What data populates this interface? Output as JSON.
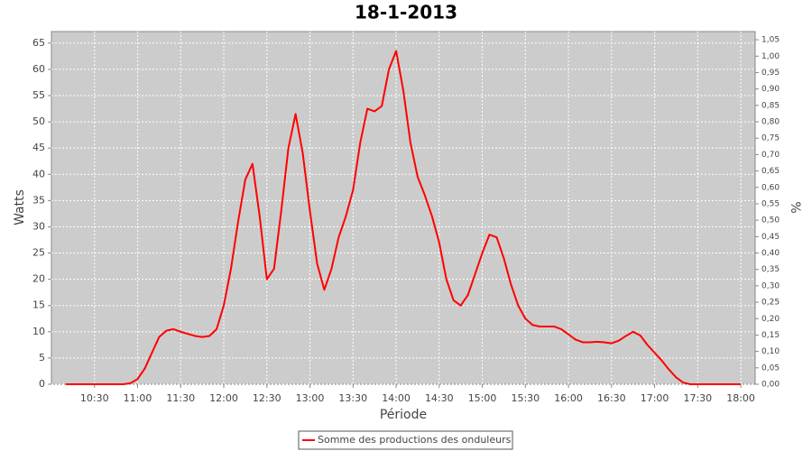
{
  "chart_data": {
    "type": "line",
    "title": "18-1-2013",
    "x_label": "Période",
    "y_label": "Watts",
    "y2_label": "%",
    "x": [
      610,
      615,
      620,
      625,
      630,
      635,
      640,
      645,
      650,
      655,
      660,
      665,
      670,
      675,
      680,
      685,
      690,
      695,
      700,
      705,
      710,
      715,
      720,
      725,
      730,
      735,
      740,
      745,
      750,
      755,
      760,
      765,
      770,
      775,
      780,
      785,
      790,
      795,
      800,
      805,
      810,
      815,
      820,
      825,
      830,
      835,
      840,
      845,
      850,
      855,
      860,
      865,
      870,
      875,
      880,
      885,
      890,
      895,
      900,
      905,
      910,
      915,
      920,
      925,
      930,
      935,
      940,
      945,
      950,
      955,
      960,
      965,
      970,
      975,
      980,
      985,
      990,
      995,
      1000,
      1005,
      1010,
      1015,
      1020,
      1025,
      1030,
      1035,
      1040,
      1045,
      1050,
      1055,
      1060,
      1065,
      1070,
      1075,
      1080
    ],
    "series": [
      {
        "name": "Somme des productions des onduleurs",
        "color": "#ff0000",
        "values": [
          0,
          0,
          0,
          0,
          0,
          0,
          0,
          0,
          0,
          0.2,
          1,
          3,
          6,
          9,
          10.2,
          10.5,
          10,
          9.6,
          9.2,
          9,
          9.2,
          10.5,
          15,
          22,
          31,
          39,
          42,
          32,
          20,
          22,
          33,
          45,
          51.5,
          44,
          33,
          23,
          18,
          22,
          28,
          32,
          37,
          46,
          52.5,
          52,
          53,
          60,
          63.5,
          56,
          46,
          39.5,
          36,
          32,
          27,
          20,
          16,
          15,
          17,
          21,
          25,
          28.5,
          28,
          24,
          19,
          15,
          12.5,
          11.3,
          11,
          11,
          11,
          10.5,
          9.5,
          8.5,
          8,
          8,
          8.1,
          8,
          7.8,
          8.3,
          9.2,
          10,
          9.3,
          7.5,
          6,
          4.5,
          2.8,
          1.3,
          0.3,
          0,
          0,
          0,
          0,
          0,
          0,
          0,
          0
        ]
      }
    ],
    "xlim": [
      600,
      1090
    ],
    "xticks": [
      {
        "value": 630,
        "label": "10:30"
      },
      {
        "value": 660,
        "label": "11:00"
      },
      {
        "value": 690,
        "label": "11:30"
      },
      {
        "value": 720,
        "label": "12:00"
      },
      {
        "value": 750,
        "label": "12:30"
      },
      {
        "value": 780,
        "label": "13:00"
      },
      {
        "value": 810,
        "label": "13:30"
      },
      {
        "value": 840,
        "label": "14:00"
      },
      {
        "value": 870,
        "label": "14:30"
      },
      {
        "value": 900,
        "label": "15:00"
      },
      {
        "value": 930,
        "label": "15:30"
      },
      {
        "value": 960,
        "label": "16:00"
      },
      {
        "value": 990,
        "label": "16:30"
      },
      {
        "value": 1020,
        "label": "17:00"
      },
      {
        "value": 1050,
        "label": "17:30"
      },
      {
        "value": 1080,
        "label": "18:00"
      }
    ],
    "ylim": [
      0,
      67.2
    ],
    "yticks": [
      0,
      5,
      10,
      15,
      20,
      25,
      30,
      35,
      40,
      45,
      50,
      55,
      60,
      65
    ],
    "y2lim": [
      0,
      1.075
    ],
    "y2ticks": [
      {
        "value": 0,
        "label": "0,00"
      },
      {
        "value": 0.05,
        "label": "0,05"
      },
      {
        "value": 0.1,
        "label": "0,10"
      },
      {
        "value": 0.15,
        "label": "0,15"
      },
      {
        "value": 0.2,
        "label": "0,20"
      },
      {
        "value": 0.25,
        "label": "0,25"
      },
      {
        "value": 0.3,
        "label": "0,30"
      },
      {
        "value": 0.35,
        "label": "0,35"
      },
      {
        "value": 0.4,
        "label": "0,40"
      },
      {
        "value": 0.45,
        "label": "0,45"
      },
      {
        "value": 0.5,
        "label": "0,50"
      },
      {
        "value": 0.55,
        "label": "0,55"
      },
      {
        "value": 0.6,
        "label": "0,60"
      },
      {
        "value": 0.65,
        "label": "0,65"
      },
      {
        "value": 0.7,
        "label": "0,70"
      },
      {
        "value": 0.75,
        "label": "0,75"
      },
      {
        "value": 0.8,
        "label": "0,80"
      },
      {
        "value": 0.85,
        "label": "0,85"
      },
      {
        "value": 0.9,
        "label": "0,90"
      },
      {
        "value": 0.95,
        "label": "0,95"
      },
      {
        "value": 1,
        "label": "1,00"
      },
      {
        "value": 1.05,
        "label": "1,05"
      }
    ],
    "grid": true
  }
}
